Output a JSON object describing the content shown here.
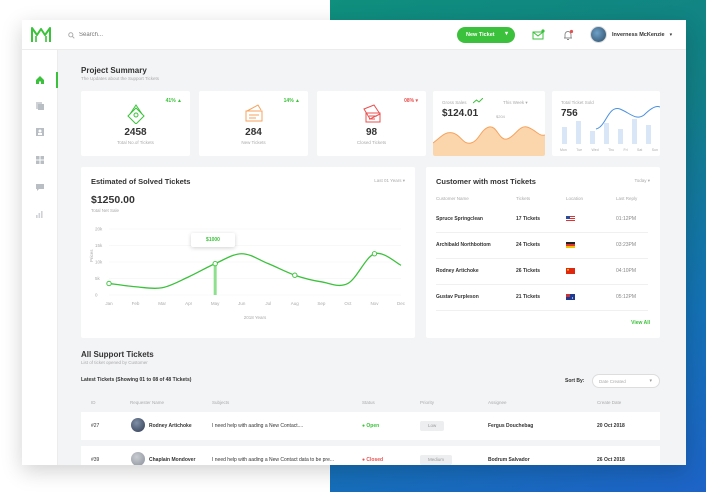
{
  "colors": {
    "accent": "#3bc13b",
    "orange": "#f5a25d",
    "red": "#e8504f",
    "blue": "#4a90e2"
  },
  "search": {
    "placeholder": "Search..."
  },
  "header": {
    "new_ticket": "New Ticket",
    "user_name": "Inverness McKenzie"
  },
  "sidebar": {
    "items": [
      {
        "icon": "home-icon"
      },
      {
        "icon": "copy-icon"
      },
      {
        "icon": "contact-card-icon"
      },
      {
        "icon": "grid-icon"
      },
      {
        "icon": "chat-icon"
      },
      {
        "icon": "chart-icon"
      }
    ]
  },
  "summary": {
    "title": "Project Summary",
    "subtitle": "The Updates about the Support Tickets"
  },
  "stats": [
    {
      "pct": "41% ▲",
      "value": "2458",
      "label": "Total No.of Tickets",
      "color": "#3bc13b"
    },
    {
      "pct": "14% ▲",
      "value": "284",
      "label": "New Tickets",
      "color": "#3bc13b"
    },
    {
      "pct": "08% ▾",
      "value": "98",
      "label": "Closed Tickets",
      "color": "#e8504f"
    }
  ],
  "gross_sales": {
    "label": "Gross Sales",
    "period": "This Week ▾",
    "value": "$124.01",
    "marker": "$204"
  },
  "tickets_sold": {
    "label": "Total Ticket Sold",
    "value": "756",
    "days": [
      "Mon",
      "Tue",
      "Wed",
      "Thu",
      "Fri",
      "Sat",
      "Sun"
    ]
  },
  "solved": {
    "title": "Estimated of Solved Tickets",
    "period": "Last 01 Years ▾",
    "value": "$1250.00",
    "value_label": "Total Net Sale",
    "tooltip": "$1000",
    "ylabel": "Prices",
    "xlabel": "2018 Years"
  },
  "chart_data": {
    "type": "line",
    "categories": [
      "Jan",
      "Feb",
      "Mar",
      "Apr",
      "May",
      "Jun",
      "Jul",
      "Aug",
      "Sep",
      "Oct",
      "Nov",
      "Dec"
    ],
    "y_ticks": [
      "20k",
      "15k",
      "10k",
      "5k",
      "0"
    ],
    "ylim": [
      0,
      20000
    ],
    "series": [
      {
        "values": [
          3500,
          2500,
          2200,
          5500,
          9500,
          12500,
          9500,
          6000,
          4000,
          3500,
          12500,
          9000
        ]
      }
    ],
    "highlight": "May"
  },
  "customers": {
    "title": "Customer with most Tickets",
    "period": "Today ▾",
    "columns": [
      "Customer Name",
      "Tickets",
      "Location",
      "Last Reply"
    ],
    "rows": [
      {
        "name": "Spruce Springclean",
        "tickets": "17 Tickets",
        "flag": "US",
        "reply": "01:12PM"
      },
      {
        "name": "Archibald Northbottom",
        "tickets": "24 Tickets",
        "flag": "DE",
        "reply": "03:23PM"
      },
      {
        "name": "Rodney Artichoke",
        "tickets": "26 Tickets",
        "flag": "CN",
        "reply": "04:10PM"
      },
      {
        "name": "Gustav Purpleson",
        "tickets": "21 Tickets",
        "flag": "AU",
        "reply": "05:12PM"
      }
    ],
    "view_all": "View All"
  },
  "support": {
    "title": "All Support Tickets",
    "subtitle": "List of ticket opened by Customer",
    "showing": "Latest Tickets (Showing 01 to 08 of 48 Tickets)",
    "sort_by": "Sort By:",
    "sort_value": "Date Created",
    "columns": [
      "ID",
      "Requester Name",
      "Subjects",
      "Status",
      "Priority",
      "Assignee",
      "Create Date"
    ],
    "rows": [
      {
        "id": "#27",
        "requester": "Rodney Artichoke",
        "subject": "I need help with aading a New Contact....",
        "status": "Open",
        "status_color": "#3bc13b",
        "priority": "Low",
        "assignee": "Fergus Douchebag",
        "date": "20 Oct 2018"
      },
      {
        "id": "#39",
        "requester": "Chaplain Mondover",
        "subject": "I need help with aading a New Contact data to be pre...",
        "status": "Closed",
        "status_color": "#e8504f",
        "priority": "Medium",
        "assignee": "Bodrum Salvador",
        "date": "26 Oct 2018"
      }
    ]
  }
}
